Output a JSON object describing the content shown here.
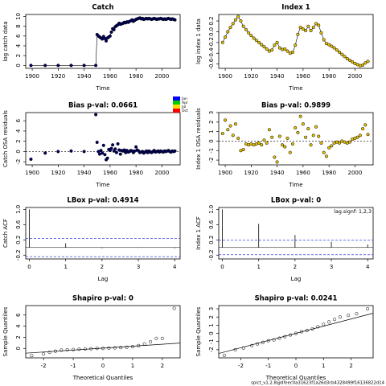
{
  "footer": "spict_v1.2.8@dfeec0a31623f1a26d3cb4328499f16136822d14",
  "season_legend": {
    "labels": [
      "Jan",
      "Apr",
      "Jul",
      "Oct"
    ],
    "colors": [
      "#0000ff",
      "#00cc00",
      "#ffdd00",
      "#ff0000"
    ]
  },
  "chart_data": [
    {
      "type": "line",
      "title": "Catch",
      "xlabel": "Time",
      "ylabel": "log catch data",
      "color": "#000066",
      "x": [
        1899,
        1910,
        1920,
        1930,
        1940,
        1949,
        1950,
        1951,
        1952,
        1953,
        1954,
        1955,
        1956,
        1957,
        1958,
        1959,
        1960,
        1961,
        1962,
        1963,
        1964,
        1965,
        1966,
        1967,
        1968,
        1969,
        1970,
        1971,
        1972,
        1973,
        1974,
        1975,
        1976,
        1977,
        1978,
        1979,
        1980,
        1981,
        1982,
        1983,
        1984,
        1985,
        1986,
        1987,
        1988,
        1989,
        1990,
        1991,
        1992,
        1993,
        1994,
        1995,
        1996,
        1997,
        1998,
        1999,
        2000,
        2001,
        2002,
        2003,
        2004,
        2005,
        2006,
        2007,
        2008,
        2009,
        2010
      ],
      "values": [
        0,
        0,
        0,
        0,
        0,
        0,
        6.3,
        6.0,
        5.8,
        5.6,
        5.4,
        5.9,
        5.5,
        5.0,
        5.6,
        5.8,
        6.0,
        6.8,
        7.5,
        7.3,
        7.9,
        8.1,
        8.3,
        8.6,
        8.4,
        8.5,
        8.6,
        8.8,
        8.7,
        8.9,
        8.8,
        9.0,
        9.1,
        9.3,
        9.0,
        9.2,
        9.4,
        9.5,
        9.6,
        9.7,
        9.5,
        9.6,
        9.4,
        9.5,
        9.6,
        9.5,
        9.6,
        9.5,
        9.4,
        9.5,
        9.6,
        9.5,
        9.4,
        9.5,
        9.5,
        9.6,
        9.5,
        9.4,
        9.5,
        9.4,
        9.5,
        9.6,
        9.5,
        9.4,
        9.5,
        9.4,
        9.3
      ],
      "xlim": [
        1895,
        2014
      ],
      "ylim": [
        -0.6,
        10.4
      ],
      "xticks": [
        1900,
        1920,
        1940,
        1960,
        1980,
        2000
      ],
      "yticks": [
        0,
        2,
        4,
        6,
        8,
        10
      ]
    },
    {
      "type": "line",
      "title": "Index 1",
      "xlabel": "Time",
      "ylabel": "log index 1 data",
      "color": "#e6c200",
      "x": [
        1898,
        1900,
        1902,
        1904,
        1906,
        1908,
        1910,
        1912,
        1914,
        1916,
        1918,
        1920,
        1922,
        1924,
        1926,
        1928,
        1930,
        1932,
        1934,
        1936,
        1938,
        1940,
        1942,
        1944,
        1946,
        1948,
        1950,
        1952,
        1954,
        1956,
        1958,
        1960,
        1962,
        1964,
        1966,
        1968,
        1970,
        1972,
        1974,
        1976,
        1978,
        1980,
        1982,
        1984,
        1986,
        1988,
        1990,
        1992,
        1994,
        1996,
        1998,
        2000,
        2002,
        2004,
        2006,
        2008,
        2010
      ],
      "values": [
        -0.2,
        -0.1,
        0.0,
        0.08,
        0.15,
        0.22,
        0.28,
        0.2,
        0.1,
        0.04,
        -0.02,
        -0.07,
        -0.12,
        -0.16,
        -0.2,
        -0.24,
        -0.28,
        -0.32,
        -0.36,
        -0.34,
        -0.25,
        -0.2,
        -0.3,
        -0.33,
        -0.32,
        -0.36,
        -0.4,
        -0.38,
        -0.25,
        -0.05,
        0.08,
        0.05,
        0.02,
        0.1,
        0.02,
        0.08,
        0.15,
        0.12,
        -0.02,
        -0.15,
        -0.22,
        -0.24,
        -0.27,
        -0.3,
        -0.34,
        -0.38,
        -0.42,
        -0.46,
        -0.5,
        -0.53,
        -0.56,
        -0.59,
        -0.61,
        -0.63,
        -0.62,
        -0.58,
        -0.55
      ],
      "xlim": [
        1895,
        2014
      ],
      "ylim": [
        -0.68,
        0.32
      ],
      "xticks": [
        1900,
        1920,
        1940,
        1960,
        1980,
        2000
      ],
      "yticks": [
        -0.6,
        -0.4,
        -0.2,
        {
          "value": 0,
          "label": "0.0"
        },
        0.2
      ]
    },
    {
      "type": "scatter",
      "title": "Bias p-val: 0.0661",
      "title_color": "#228b22",
      "xlabel": "Time",
      "ylabel": "Catch OSA residuals",
      "color": "#000066",
      "hline": 0,
      "x": [
        1899,
        1910,
        1920,
        1930,
        1940,
        1949,
        1950,
        1951,
        1952,
        1953,
        1954,
        1955,
        1956,
        1957,
        1958,
        1959,
        1960,
        1961,
        1962,
        1963,
        1964,
        1965,
        1966,
        1967,
        1968,
        1969,
        1970,
        1971,
        1972,
        1973,
        1974,
        1975,
        1976,
        1977,
        1978,
        1979,
        1980,
        1981,
        1982,
        1983,
        1984,
        1985,
        1986,
        1987,
        1988,
        1989,
        1990,
        1991,
        1992,
        1993,
        1994,
        1995,
        1996,
        1997,
        1998,
        1999,
        2000,
        2001,
        2002,
        2003,
        2004,
        2005,
        2006,
        2007,
        2008,
        2009,
        2010
      ],
      "values": [
        -1.5,
        -0.3,
        0,
        0.1,
        0,
        7.2,
        1.8,
        0,
        -0.5,
        0.2,
        -0.3,
        1.2,
        -0.6,
        -1.6,
        -1.3,
        0.4,
        0.2,
        0.6,
        1.3,
        0.1,
        0.5,
        -0.2,
        1.5,
        0.3,
        -0.5,
        0.2,
        0.1,
        0.3,
        -0.2,
        0.2,
        -0.1,
        0.0,
        0.2,
        0.1,
        -0.2,
        0.1,
        0.9,
        0.3,
        0.1,
        -0.2,
        -0.1,
        0.0,
        -0.3,
        -0.1,
        0.1,
        -0.2,
        0.1,
        -0.1,
        -0.2,
        0.0,
        0.2,
        -0.1,
        0.0,
        0.1,
        -0.1,
        0.1,
        0.0,
        -0.1,
        0.1,
        0.0,
        0.1,
        0.2,
        0.0,
        -0.1,
        0.1,
        0.0,
        0.1
      ],
      "xlim": [
        1895,
        2014
      ],
      "ylim": [
        -2.6,
        7.6
      ],
      "xticks": [
        1900,
        1920,
        1940,
        1960,
        1980,
        2000
      ],
      "yticks": [
        -2,
        0,
        2,
        4,
        6
      ]
    },
    {
      "type": "scatter",
      "title": "Bias p-val: 0.9899",
      "title_color": "#228b22",
      "xlabel": "Time",
      "ylabel": "Index 1 OSA residuals",
      "color": "#e6c200",
      "hline": 0,
      "x": [
        1898,
        1900,
        1902,
        1904,
        1906,
        1908,
        1910,
        1912,
        1914,
        1916,
        1918,
        1920,
        1922,
        1924,
        1926,
        1928,
        1930,
        1932,
        1934,
        1936,
        1938,
        1940,
        1942,
        1944,
        1946,
        1948,
        1950,
        1952,
        1954,
        1956,
        1958,
        1960,
        1962,
        1964,
        1966,
        1968,
        1970,
        1972,
        1974,
        1976,
        1978,
        1980,
        1982,
        1984,
        1986,
        1988,
        1990,
        1992,
        1994,
        1996,
        1998,
        2000,
        2002,
        2004,
        2006,
        2008,
        2010
      ],
      "values": [
        0.8,
        2.2,
        1.2,
        1.6,
        0.6,
        1.8,
        0.3,
        -1.0,
        -0.9,
        -0.3,
        -0.4,
        -0.3,
        -0.4,
        -0.3,
        -0.2,
        -0.4,
        0.1,
        -0.2,
        1.2,
        0.4,
        -1.7,
        -2.2,
        0.5,
        -0.4,
        -0.6,
        0.3,
        -1.2,
        -0.3,
        1.4,
        0.9,
        2.6,
        1.8,
        0.4,
        1.3,
        -0.4,
        0.6,
        1.5,
        0.5,
        -0.2,
        -1.2,
        -1.6,
        -0.7,
        -0.5,
        -0.2,
        -0.1,
        -0.2,
        0.0,
        -0.1,
        -0.2,
        -0.1,
        0.2,
        0.3,
        0.4,
        0.6,
        1.3,
        1.7,
        0.7
      ],
      "xlim": [
        1895,
        2014
      ],
      "ylim": [
        -2.5,
        3.0
      ],
      "xticks": [
        1900,
        1920,
        1940,
        1960,
        1980,
        2000
      ],
      "yticks": [
        -2,
        -1,
        0,
        1,
        2,
        3
      ]
    },
    {
      "type": "bar",
      "title": "LBox p-val: 0.4914",
      "title_color": "#228b22",
      "xlabel": "Lag",
      "ylabel": "Catch ACF",
      "color": "#000000",
      "ci": 0.24,
      "x": [
        0,
        1,
        2,
        3,
        4
      ],
      "values": [
        1.0,
        0.11,
        -0.02,
        -0.01,
        -0.02
      ],
      "xlim": [
        -0.1,
        4.15
      ],
      "ylim": [
        -0.3,
        1.05
      ],
      "xticks": [
        0,
        1,
        2,
        3,
        4
      ],
      "yticks": [
        -0.2,
        0.2,
        0.6,
        {
          "value": 1,
          "label": "1.0"
        }
      ]
    },
    {
      "type": "bar",
      "title": "LBox p-val: 0",
      "title_color": "#ff0000",
      "xlabel": "Lag",
      "ylabel": "Index 1 ACF",
      "color": "#000000",
      "ci": 0.19,
      "annotation": "lag.signf: 1,2,3",
      "x": [
        0,
        1,
        2,
        3,
        4
      ],
      "values": [
        1.0,
        0.62,
        0.33,
        0.15,
        0.08
      ],
      "xlim": [
        -0.1,
        4.15
      ],
      "ylim": [
        -0.3,
        1.05
      ],
      "xticks": [
        0,
        1,
        2,
        3,
        4
      ],
      "yticks": [
        -0.2,
        0.2,
        0.6,
        {
          "value": 1,
          "label": "1.0"
        }
      ]
    },
    {
      "type": "qq",
      "title": "Shapiro p-val: 0",
      "title_color": "#ff0000",
      "xlabel": "Theoretical Quantiles",
      "ylabel": "Sample Quantiles",
      "color": "#000000",
      "qqline": {
        "intercept": 0.05,
        "slope": 0.35
      },
      "x": [
        -2.4,
        -2.0,
        -1.8,
        -1.6,
        -1.4,
        -1.2,
        -1.0,
        -0.8,
        -0.6,
        -0.4,
        -0.2,
        0,
        0.2,
        0.4,
        0.6,
        0.8,
        1.0,
        1.2,
        1.4,
        1.6,
        1.8,
        2.0,
        2.4
      ],
      "values": [
        -1.3,
        -1.0,
        -0.7,
        -0.5,
        -0.3,
        -0.25,
        -0.2,
        -0.15,
        -0.1,
        -0.05,
        0,
        0,
        0.05,
        0.1,
        0.15,
        0.2,
        0.3,
        0.5,
        0.8,
        1.2,
        1.8,
        1.8,
        7.2
      ],
      "xlim": [
        -2.6,
        2.6
      ],
      "ylim": [
        -1.7,
        7.7
      ],
      "xticks": [
        -2,
        -1,
        0,
        1,
        2
      ],
      "yticks": [
        0,
        2,
        4,
        6
      ]
    },
    {
      "type": "qq",
      "title": "Shapiro p-val: 0.0241",
      "title_color": "#ff0000",
      "xlabel": "Theoretical Quantiles",
      "ylabel": "Sample Quantiles",
      "color": "#000000",
      "qqline": {
        "intercept": 0.0,
        "slope": 0.88
      },
      "x": [
        -2.6,
        -2.2,
        -1.9,
        -1.6,
        -1.4,
        -1.2,
        -1.0,
        -0.8,
        -0.6,
        -0.4,
        -0.2,
        0,
        0.2,
        0.4,
        0.6,
        0.8,
        1.0,
        1.2,
        1.4,
        1.6,
        1.9,
        2.2,
        2.6
      ],
      "values": [
        -2.7,
        -2.0,
        -1.8,
        -1.5,
        -1.3,
        -1.1,
        -0.9,
        -0.8,
        -0.6,
        -0.4,
        -0.2,
        0,
        0.2,
        0.35,
        0.55,
        0.8,
        1.1,
        1.4,
        1.7,
        2.0,
        2.2,
        2.4,
        3.0
      ],
      "xlim": [
        -2.8,
        2.8
      ],
      "ylim": [
        -3.0,
        3.4
      ],
      "xticks": [
        -2,
        -1,
        0,
        1,
        2
      ],
      "yticks": [
        -2,
        -1,
        0,
        1,
        2,
        3
      ]
    }
  ]
}
